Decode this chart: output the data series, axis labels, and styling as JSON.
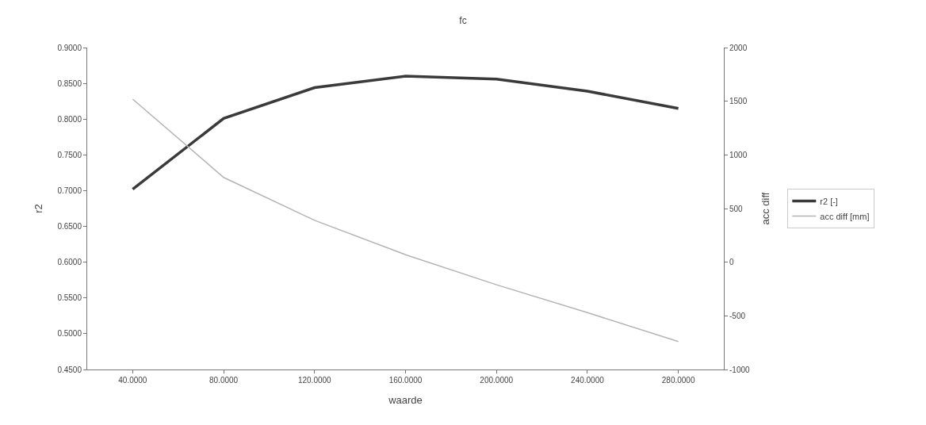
{
  "chart_data": {
    "type": "line",
    "title": "fc",
    "xlabel": "waarde",
    "ylabel": "r2",
    "y2label": "acc diff",
    "x": [
      40,
      80,
      120,
      160,
      200,
      240,
      280
    ],
    "series": [
      {
        "name": "r2 [-]",
        "color": "#3a3a3a",
        "values": [
          0.702,
          0.801,
          0.844,
          0.86,
          0.856,
          0.839,
          0.815
        ]
      },
      {
        "name": "acc diff [mm]",
        "color": "#b4b4b4",
        "axis": "y2",
        "values": [
          1520,
          790,
          390,
          70,
          -210,
          -470,
          -740
        ]
      }
    ],
    "xlim": [
      20,
      300
    ],
    "xticks": [
      {
        "value": 40,
        "label": "40.0000"
      },
      {
        "value": 80,
        "label": "80.0000"
      },
      {
        "value": 120,
        "label": "120.0000"
      },
      {
        "value": 160,
        "label": "160.0000"
      },
      {
        "value": 200,
        "label": "200.0000"
      },
      {
        "value": 240,
        "label": "240.0000"
      },
      {
        "value": 280,
        "label": "280.0000"
      }
    ],
    "ylim": [
      0.45,
      0.9
    ],
    "yticks": [
      {
        "value": 0.45,
        "label": "0.4500"
      },
      {
        "value": 0.5,
        "label": "0.5000"
      },
      {
        "value": 0.55,
        "label": "0.5500"
      },
      {
        "value": 0.6,
        "label": "0.6000"
      },
      {
        "value": 0.65,
        "label": "0.6500"
      },
      {
        "value": 0.7,
        "label": "0.7000"
      },
      {
        "value": 0.75,
        "label": "0.7500"
      },
      {
        "value": 0.8,
        "label": "0.8000"
      },
      {
        "value": 0.85,
        "label": "0.8500"
      },
      {
        "value": 0.9,
        "label": "0.9000"
      }
    ],
    "y2lim": [
      -1000,
      2000
    ],
    "y2ticks": [
      -1000,
      -500,
      0,
      500,
      1000,
      1500,
      2000
    ],
    "legend": "right",
    "marker": "none",
    "line_style": "solid"
  }
}
